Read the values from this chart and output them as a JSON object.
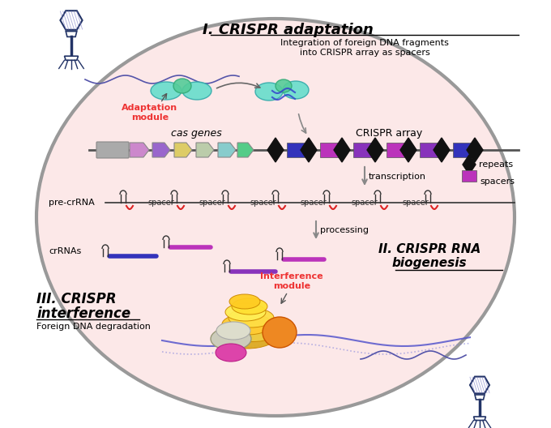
{
  "bg_color": "#ffffff",
  "cell_color": "#fce8e8",
  "cell_edge_color": "#999999",
  "title1_prefix": "I. ",
  "title1_main": "CRISPR adaptation",
  "subtitle1": "Integration of foreign DNA fragments\ninto CRISPR array as spacers",
  "title2_prefix": "II. ",
  "title2_main": "CRISPR RNA",
  "title2_sub": "biogenesis",
  "title3_prefix": "III. ",
  "title3_main": "CRISPR",
  "title3_sub": "interference",
  "subtitle3": "Foreign DNA degradation",
  "label_adaptation": "Adaptation\nmodule",
  "label_interference": "Interference\nmodule",
  "label_cas": "cas genes",
  "label_crispr": "CRISPR array",
  "label_transcription": "transcription",
  "label_processing": "processing",
  "label_pre_crRNA": "pre-crRNA",
  "label_crRNAs": "crRNAs",
  "label_repeats": "repeats",
  "label_spacers": "spacers",
  "repeat_color": "#111111",
  "spacer_colors_array": [
    "#3333bb",
    "#bb33bb",
    "#8833bb",
    "#bb33bb",
    "#8833bb",
    "#3333bb"
  ],
  "cas_gene_colors": [
    "#aaaaaa",
    "#cc88cc",
    "#9966cc",
    "#ddcc66",
    "#bbccaa",
    "#88cccc",
    "#55cc88"
  ],
  "arrow_color": "#888888",
  "adapt_color1": "#66ddcc",
  "adapt_color2": "#55cc99",
  "red_label_color": "#ee3333",
  "line_color": "#555555",
  "dna_color": "#5555aa"
}
